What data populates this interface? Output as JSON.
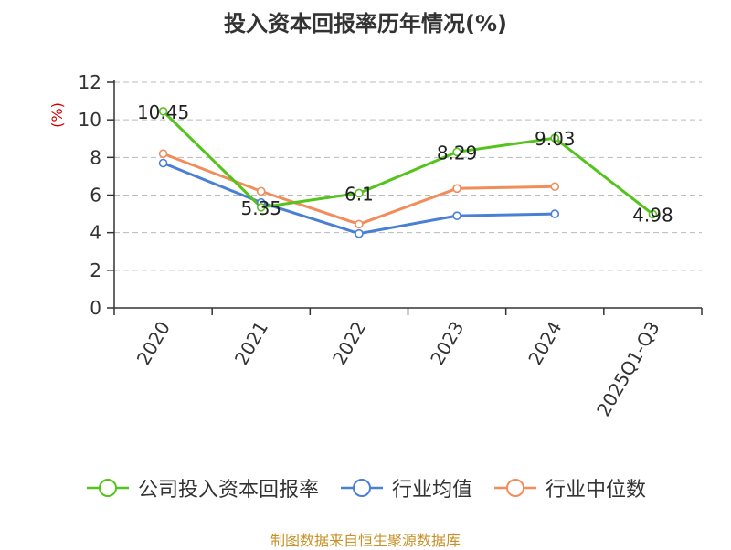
{
  "title": "投入资本回报率历年情况(%)",
  "source": "制图数据来自恒生聚源数据库",
  "colors": {
    "source": "#c8922a",
    "unit": "#cc0000",
    "grid": "#bbbbbb",
    "axis": "#333333"
  },
  "chart_data": {
    "type": "line",
    "title": "投入资本回报率历年情况(%)",
    "ylabel": "(%)",
    "xlabel": "",
    "ylim": [
      0,
      12
    ],
    "yticks": [
      0,
      2,
      4,
      6,
      8,
      10,
      12
    ],
    "categories": [
      "2020",
      "2021",
      "2022",
      "2023",
      "2024",
      "2025Q1-Q3"
    ],
    "grid": "horizontal dashed",
    "legend_position": "bottom",
    "series": [
      {
        "name": "公司投入资本回报率",
        "color": "#52c41a",
        "values": [
          10.45,
          5.35,
          6.1,
          8.29,
          9.03,
          4.98
        ],
        "labels": [
          "10.45",
          "5.35",
          "6.1",
          "8.29",
          "9.03",
          "4.98"
        ]
      },
      {
        "name": "行业均值",
        "color": "#4a7fd6",
        "values": [
          7.7,
          5.6,
          3.95,
          4.9,
          5.0,
          null
        ]
      },
      {
        "name": "行业中位数",
        "color": "#f28c5a",
        "values": [
          8.2,
          6.2,
          4.45,
          6.35,
          6.45,
          null
        ]
      }
    ]
  }
}
